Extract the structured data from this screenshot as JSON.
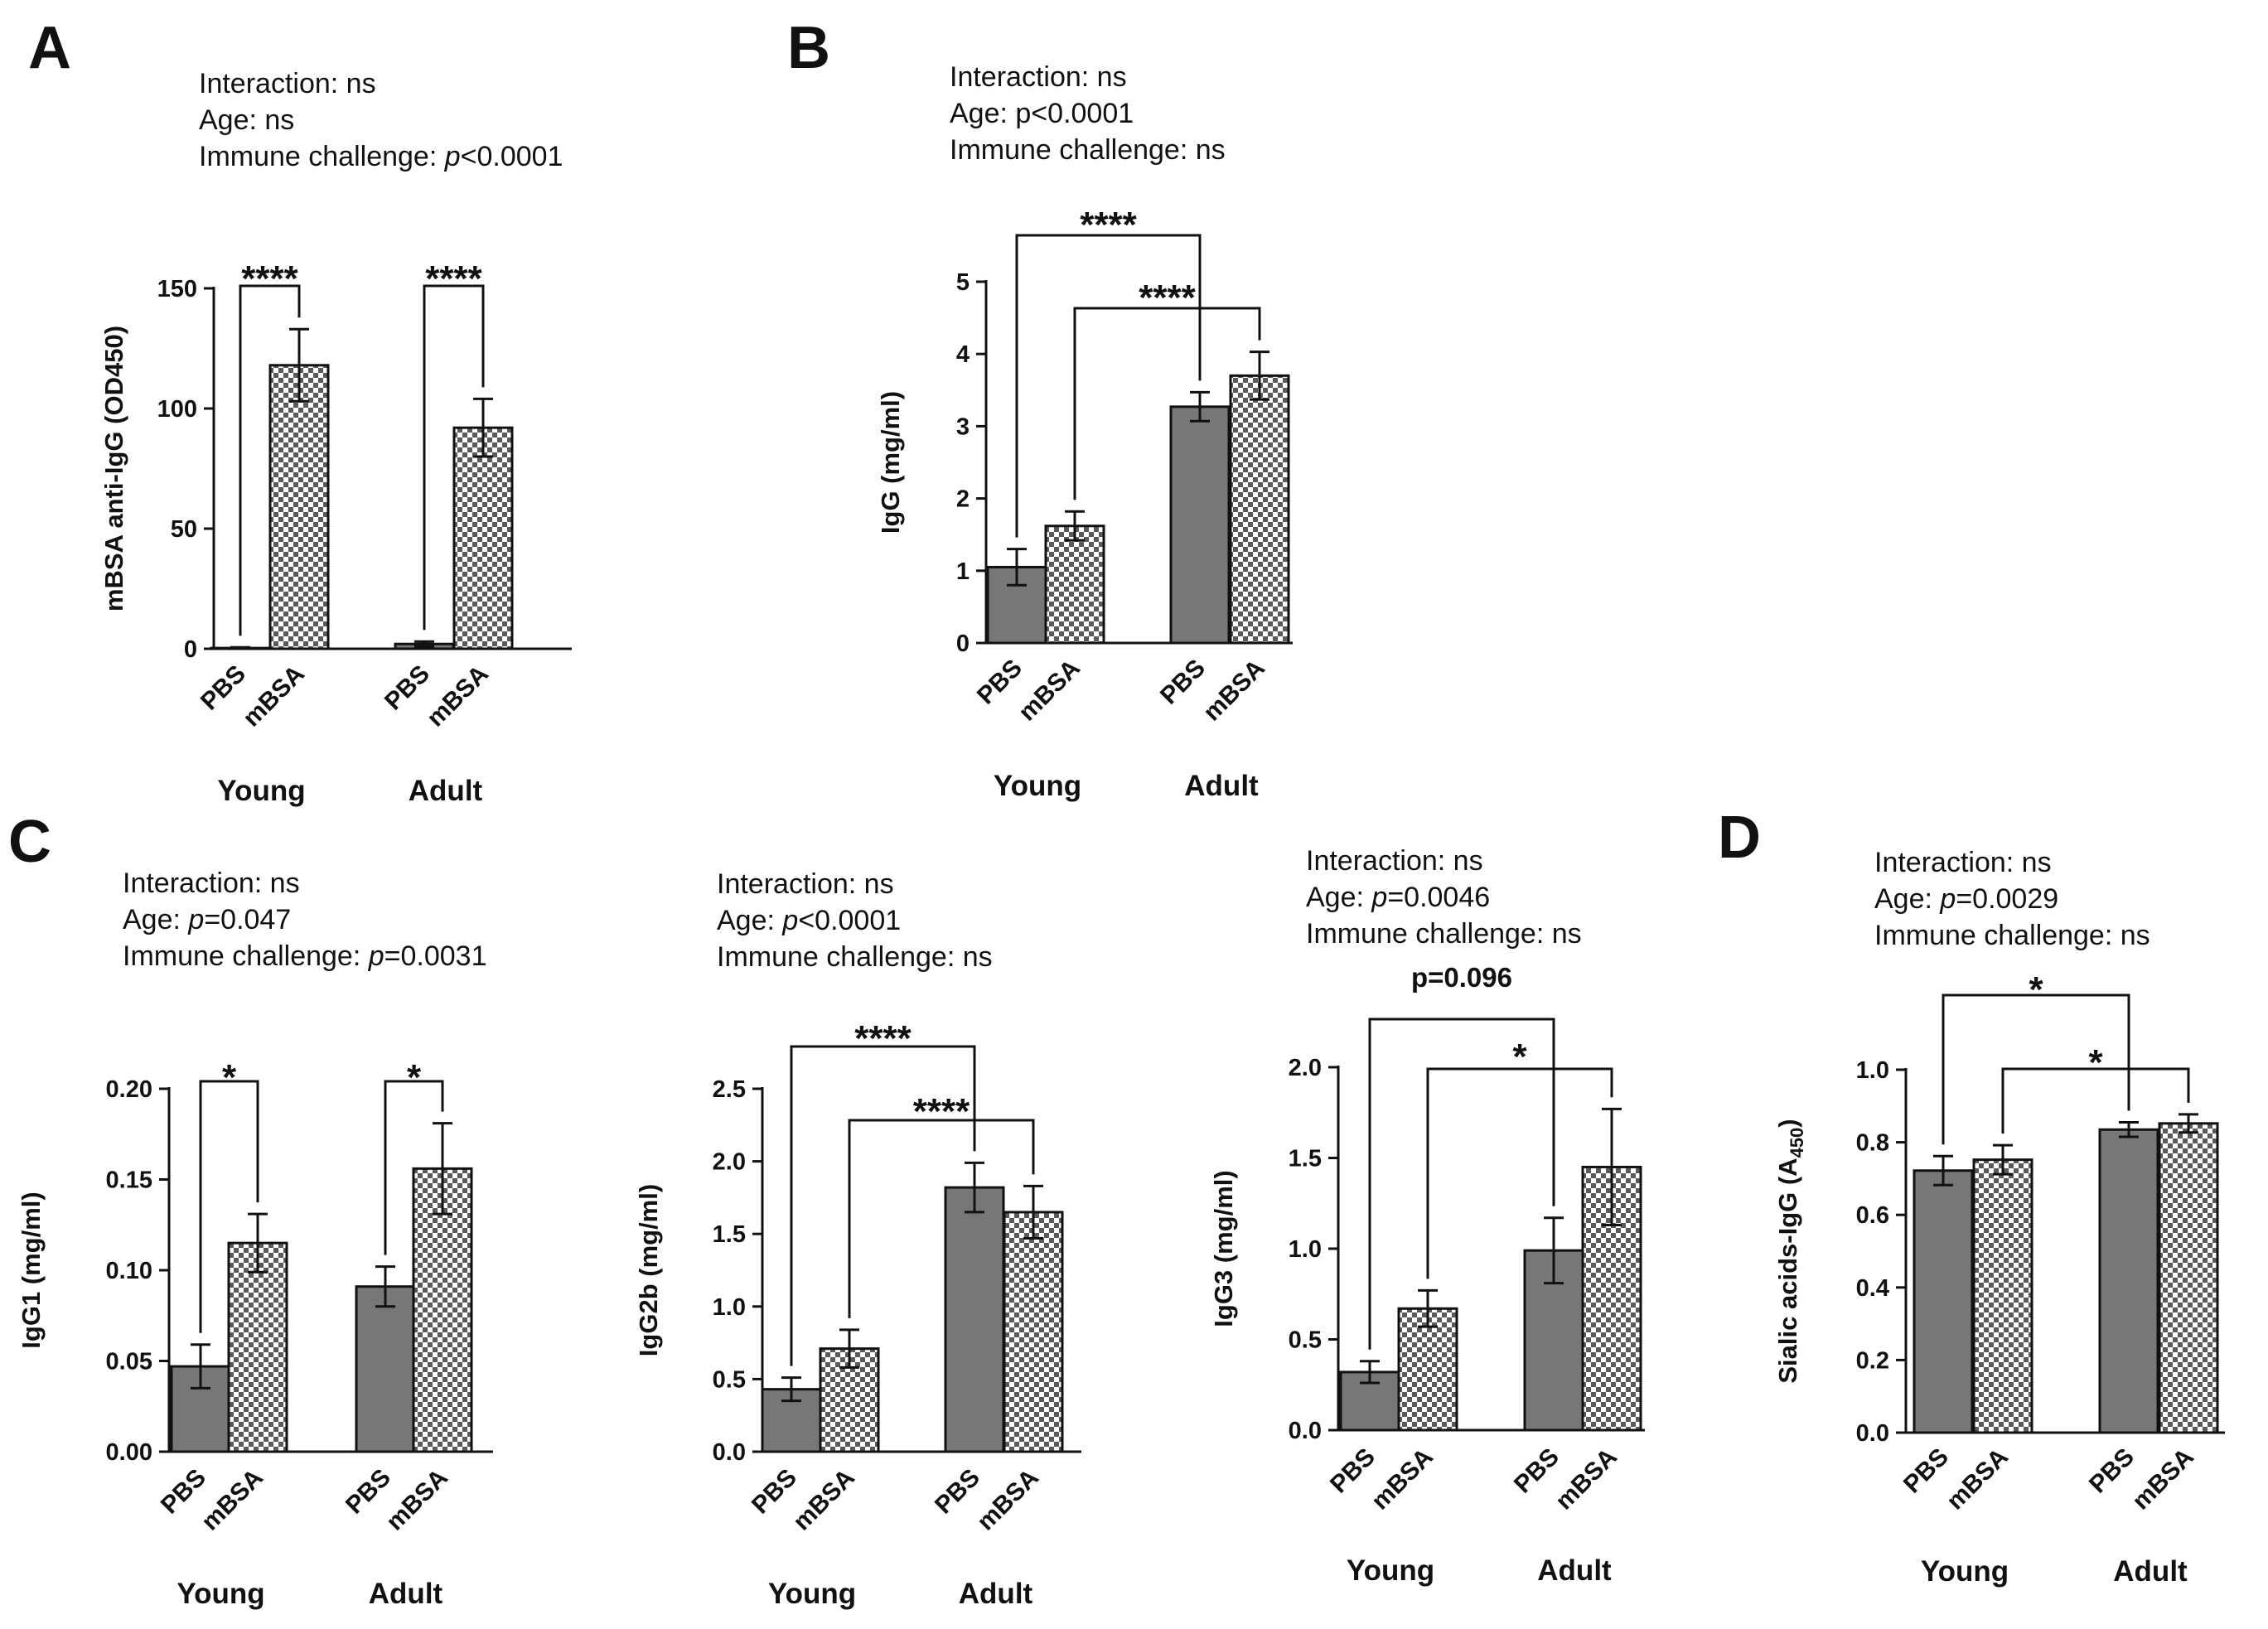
{
  "figure": {
    "panel_letters": [
      "A",
      "B",
      "C",
      "D"
    ]
  },
  "colors": {
    "pbs_fill": "#777777",
    "mbsa_light": "#ffffff",
    "mbsa_dark": "#5a5a5a",
    "line": "#111111"
  },
  "chart_data": [
    {
      "panel": "A",
      "type": "bar",
      "title": "",
      "stats": [
        {
          "label": "Interaction:",
          "value": " ns",
          "italic_p": false
        },
        {
          "label": "Age:",
          "value": " ns",
          "italic_p": false
        },
        {
          "label": "Immune challenge:",
          "value": "<0.0001",
          "italic_p": true
        }
      ],
      "ylabel": "mBSA anti-IgG (OD450)",
      "ylim": [
        0,
        150
      ],
      "yticks": [
        "0",
        "50",
        "100",
        "150"
      ],
      "groups": [
        "Young",
        "Adult"
      ],
      "categories": [
        "PBS",
        "mBSA"
      ],
      "series": [
        {
          "name": "PBS",
          "pattern": "solid",
          "values": [
            0.3,
            2
          ],
          "errors": [
            0.3,
            1
          ]
        },
        {
          "name": "mBSA",
          "pattern": "checker",
          "values": [
            118,
            92
          ],
          "errors": [
            15,
            12
          ]
        }
      ],
      "significance": [
        {
          "from": [
            0,
            0
          ],
          "to": [
            0,
            1
          ],
          "label": "****"
        },
        {
          "from": [
            1,
            0
          ],
          "to": [
            1,
            1
          ],
          "label": "****"
        }
      ]
    },
    {
      "panel": "B",
      "type": "bar",
      "title": "",
      "stats": [
        {
          "label": "Interaction:",
          "value": " ns",
          "italic_p": false
        },
        {
          "label": "Age:",
          "value": " p<0.0001",
          "italic_p": false
        },
        {
          "label": "Immune challenge:",
          "value": " ns",
          "italic_p": false
        }
      ],
      "ylabel": "IgG (mg/ml)",
      "ylim": [
        0,
        5
      ],
      "yticks": [
        "0",
        "1",
        "2",
        "3",
        "4",
        "5"
      ],
      "groups": [
        "Young",
        "Adult"
      ],
      "categories": [
        "PBS",
        "mBSA"
      ],
      "series": [
        {
          "name": "PBS",
          "pattern": "solid",
          "values": [
            1.05,
            3.27
          ],
          "errors": [
            0.25,
            0.2
          ]
        },
        {
          "name": "mBSA",
          "pattern": "checker",
          "values": [
            1.62,
            3.7
          ],
          "errors": [
            0.2,
            0.33
          ]
        }
      ],
      "significance": [
        {
          "from": [
            0,
            0
          ],
          "to": [
            1,
            0
          ],
          "label": "****"
        },
        {
          "from": [
            0,
            1
          ],
          "to": [
            1,
            1
          ],
          "label": "****"
        }
      ]
    },
    {
      "panel": "C1",
      "type": "bar",
      "title": "",
      "stats": [
        {
          "label": "Interaction:",
          "value": " ns",
          "italic_p": false
        },
        {
          "label": "Age:",
          "value": "=0.047",
          "italic_p": true
        },
        {
          "label": "Immune challenge:",
          "value": "=0.0031",
          "italic_p": true
        }
      ],
      "ylabel": "IgG1 (mg/ml)",
      "ylim": [
        0,
        0.2
      ],
      "yticks": [
        "0.00",
        "0.05",
        "0.10",
        "0.15",
        "0.20"
      ],
      "groups": [
        "Young",
        "Adult"
      ],
      "categories": [
        "PBS",
        "mBSA"
      ],
      "series": [
        {
          "name": "PBS",
          "pattern": "solid",
          "values": [
            0.047,
            0.091
          ],
          "errors": [
            0.012,
            0.011
          ]
        },
        {
          "name": "mBSA",
          "pattern": "checker",
          "values": [
            0.115,
            0.156
          ],
          "errors": [
            0.016,
            0.025
          ]
        }
      ],
      "significance": [
        {
          "from": [
            0,
            0
          ],
          "to": [
            0,
            1
          ],
          "label": "*"
        },
        {
          "from": [
            1,
            0
          ],
          "to": [
            1,
            1
          ],
          "label": "*"
        }
      ]
    },
    {
      "panel": "C2",
      "type": "bar",
      "title": "",
      "stats": [
        {
          "label": "Interaction:",
          "value": " ns",
          "italic_p": false
        },
        {
          "label": "Age:",
          "value": "<0.0001",
          "italic_p": true
        },
        {
          "label": "Immune challenge:",
          "value": " ns",
          "italic_p": false
        }
      ],
      "ylabel": "IgG2b (mg/ml)",
      "ylim": [
        0,
        2.5
      ],
      "yticks": [
        "0.0",
        "0.5",
        "1.0",
        "1.5",
        "2.0",
        "2.5"
      ],
      "groups": [
        "Young",
        "Adult"
      ],
      "categories": [
        "PBS",
        "mBSA"
      ],
      "series": [
        {
          "name": "PBS",
          "pattern": "solid",
          "values": [
            0.43,
            1.82
          ],
          "errors": [
            0.08,
            0.17
          ]
        },
        {
          "name": "mBSA",
          "pattern": "checker",
          "values": [
            0.71,
            1.65
          ],
          "errors": [
            0.13,
            0.18
          ]
        }
      ],
      "significance": [
        {
          "from": [
            0,
            0
          ],
          "to": [
            1,
            0
          ],
          "label": "****"
        },
        {
          "from": [
            0,
            1
          ],
          "to": [
            1,
            1
          ],
          "label": "****"
        }
      ]
    },
    {
      "panel": "C3",
      "type": "bar",
      "title": "",
      "stats": [
        {
          "label": "Interaction:",
          "value": " ns",
          "italic_p": false
        },
        {
          "label": "Age:",
          "value": "=0.0046",
          "italic_p": true
        },
        {
          "label": "Immune challenge:",
          "value": " ns",
          "italic_p": false
        }
      ],
      "ylabel": "IgG3 (mg/ml)",
      "ylim": [
        0,
        2.0
      ],
      "yticks": [
        "0.0",
        "0.5",
        "1.0",
        "1.5",
        "2.0"
      ],
      "groups": [
        "Young",
        "Adult"
      ],
      "categories": [
        "PBS",
        "mBSA"
      ],
      "series": [
        {
          "name": "PBS",
          "pattern": "solid",
          "values": [
            0.32,
            0.99
          ],
          "errors": [
            0.06,
            0.18
          ]
        },
        {
          "name": "mBSA",
          "pattern": "checker",
          "values": [
            0.67,
            1.45
          ],
          "errors": [
            0.1,
            0.32
          ]
        }
      ],
      "significance": [
        {
          "from": [
            0,
            0
          ],
          "to": [
            1,
            0
          ],
          "label": "p=0.096",
          "small": true
        },
        {
          "from": [
            0,
            1
          ],
          "to": [
            1,
            1
          ],
          "label": "*"
        }
      ]
    },
    {
      "panel": "D",
      "type": "bar",
      "title": "",
      "stats": [
        {
          "label": "Interaction:",
          "value": " ns",
          "italic_p": false
        },
        {
          "label": "Age:",
          "value": "=0.0029",
          "italic_p": true
        },
        {
          "label": "Immune challenge:",
          "value": " ns",
          "italic_p": false
        }
      ],
      "ylabel": "Sialic acids-IgG (A",
      "ylabel_sub": "450",
      "ylabel_end": ")",
      "ylim": [
        0,
        1.0
      ],
      "yticks": [
        "0.0",
        "0.2",
        "0.4",
        "0.6",
        "0.8",
        "1.0"
      ],
      "groups": [
        "Young",
        "Adult"
      ],
      "categories": [
        "PBS",
        "mBSA"
      ],
      "series": [
        {
          "name": "PBS",
          "pattern": "solid",
          "values": [
            0.722,
            0.835
          ],
          "errors": [
            0.04,
            0.02
          ]
        },
        {
          "name": "mBSA",
          "pattern": "checker",
          "values": [
            0.752,
            0.852
          ],
          "errors": [
            0.04,
            0.025
          ]
        }
      ],
      "significance": [
        {
          "from": [
            0,
            0
          ],
          "to": [
            1,
            0
          ],
          "label": "*"
        },
        {
          "from": [
            0,
            1
          ],
          "to": [
            1,
            1
          ],
          "label": "*"
        }
      ]
    }
  ]
}
